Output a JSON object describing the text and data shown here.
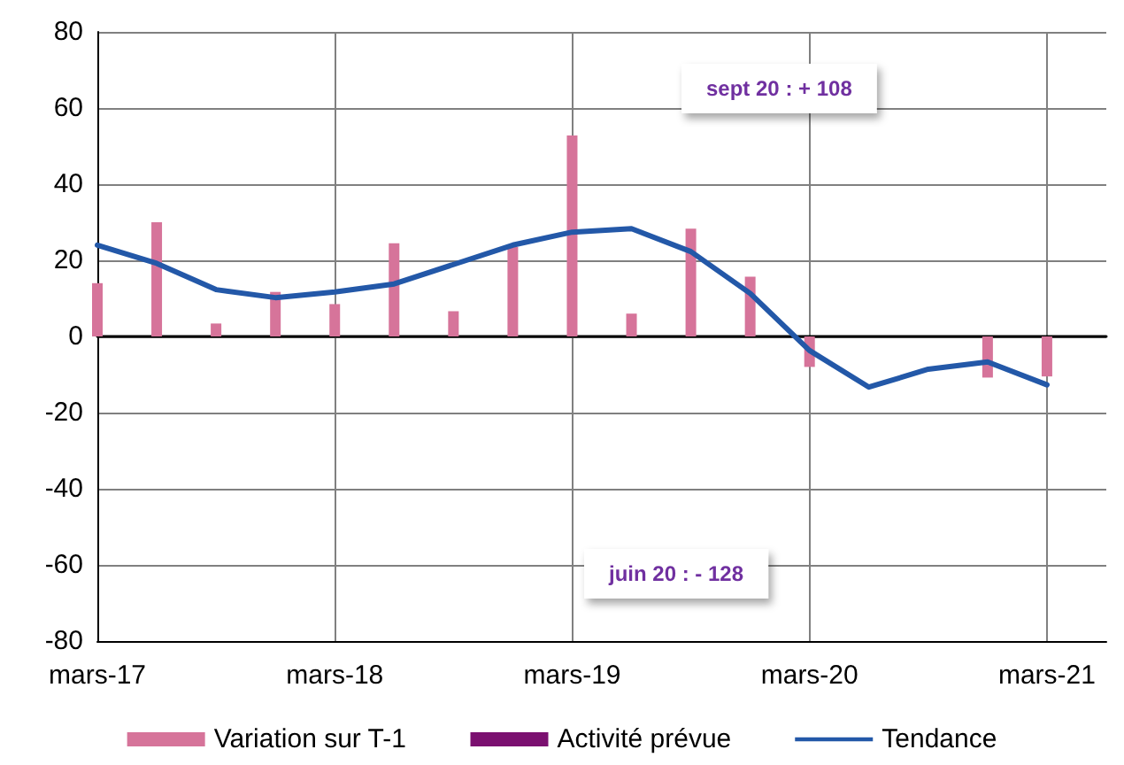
{
  "chart_data": {
    "type": "bar",
    "categories": [
      "mars-17",
      null,
      null,
      null,
      "mars-18",
      null,
      null,
      null,
      "mars-19",
      null,
      null,
      null,
      "mars-20",
      null,
      null,
      null,
      "mars-21",
      null
    ],
    "series": [
      {
        "name": "Variation sur T-1",
        "color": "#d6749a",
        "values": [
          14,
          30,
          3.4,
          11.7,
          8.5,
          24.5,
          6.6,
          23.5,
          52.8,
          6,
          28.3,
          15.7,
          -8,
          null,
          null,
          -10.8,
          -10.5,
          null
        ]
      },
      {
        "name": "Activité prévue",
        "color": "#7b1070",
        "values": [
          null,
          null,
          null,
          null,
          null,
          null,
          null,
          null,
          null,
          null,
          null,
          null,
          null,
          null,
          null,
          null,
          null,
          null
        ]
      },
      {
        "name": "Tendance",
        "type": "line",
        "color": "#2358a8",
        "values": [
          24,
          19.2,
          12.3,
          10.2,
          11.7,
          13.8,
          18.9,
          24,
          27.4,
          28.3,
          22.3,
          11.3,
          -3.7,
          -13.3,
          -8.6,
          -6.7,
          -12.7,
          null
        ]
      }
    ],
    "ylim": [
      -80,
      80
    ],
    "yticks": [
      -80,
      -60,
      -40,
      -20,
      0,
      20,
      40,
      60,
      80
    ],
    "grid": true,
    "legend": "bottom",
    "marker": "none",
    "annotations": [
      "sept 20 : + 108",
      "juin 20 : - 128"
    ]
  }
}
